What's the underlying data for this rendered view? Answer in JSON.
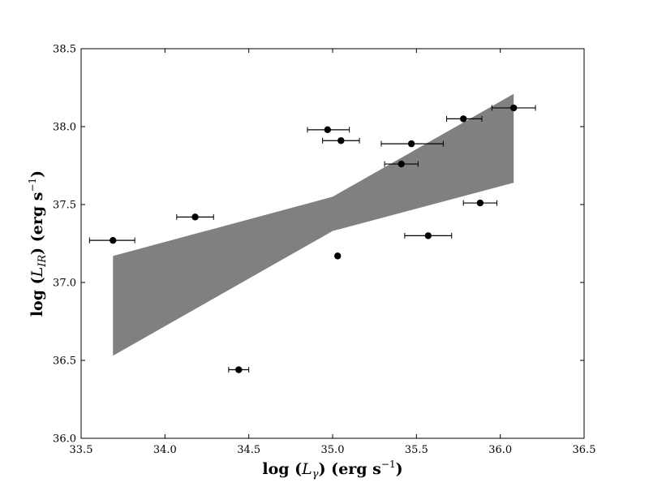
{
  "chart_data": {
    "type": "scatter",
    "title": "",
    "xlabel": {
      "prefix": "log (",
      "var": "L",
      "sub": "γ",
      "suffix_open": ") (",
      "unit": "erg s",
      "exp": "−1",
      "close": ")"
    },
    "ylabel": {
      "prefix": "log (",
      "var": "L",
      "sub": "IR",
      "suffix_open": ") (",
      "unit": "erg s",
      "exp": "−1",
      "close": ")"
    },
    "xlim": [
      33.5,
      36.5
    ],
    "ylim": [
      36.0,
      38.5
    ],
    "xticks": [
      "33.5",
      "34.0",
      "34.5",
      "35.0",
      "35.5",
      "36.0",
      "36.5"
    ],
    "yticks": [
      "36.0",
      "36.5",
      "37.0",
      "37.5",
      "38.0",
      "38.5"
    ],
    "grid": false,
    "marker_color": "#000000",
    "band_color": "#808080",
    "points": [
      {
        "x": 33.69,
        "y": 37.27,
        "xerr": [
          33.55,
          33.82
        ]
      },
      {
        "x": 34.18,
        "y": 37.42,
        "xerr": [
          34.07,
          34.29
        ]
      },
      {
        "x": 34.44,
        "y": 36.44,
        "xerr": [
          34.38,
          34.5
        ]
      },
      {
        "x": 34.97,
        "y": 37.98,
        "xerr": [
          34.85,
          35.1
        ]
      },
      {
        "x": 35.05,
        "y": 37.91,
        "xerr": [
          34.94,
          35.16
        ]
      },
      {
        "x": 35.03,
        "y": 37.17,
        "xerr": null
      },
      {
        "x": 35.41,
        "y": 37.76,
        "xerr": [
          35.31,
          35.51
        ]
      },
      {
        "x": 35.47,
        "y": 37.89,
        "xerr": [
          35.29,
          35.66
        ]
      },
      {
        "x": 35.57,
        "y": 37.3,
        "xerr": [
          35.43,
          35.71
        ]
      },
      {
        "x": 35.78,
        "y": 38.05,
        "xerr": [
          35.68,
          35.89
        ]
      },
      {
        "x": 35.88,
        "y": 37.51,
        "xerr": [
          35.78,
          35.98
        ]
      },
      {
        "x": 36.08,
        "y": 38.12,
        "xerr": [
          35.95,
          36.21
        ]
      }
    ],
    "confidence_band": {
      "x": [
        33.69,
        35.0,
        36.08
      ],
      "upper": [
        37.17,
        37.55,
        38.21
      ],
      "lower": [
        36.53,
        37.33,
        37.64
      ]
    }
  }
}
